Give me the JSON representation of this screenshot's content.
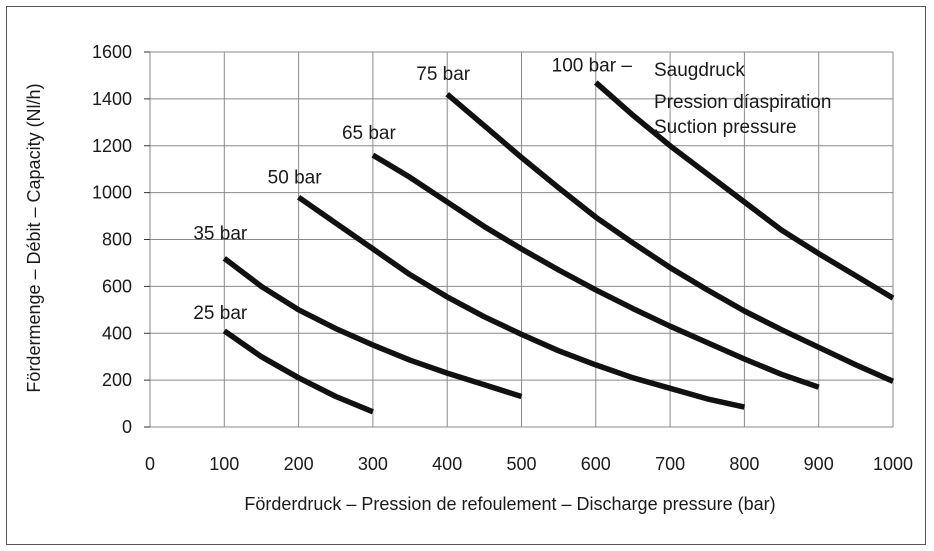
{
  "chart_data": {
    "type": "line",
    "title": "",
    "xlabel": "Förderdruck – Pression de refoulement – Discharge pressure  (bar)",
    "ylabel": "Fördermenge – Débit – Capacity  (Nl/h)",
    "xlim": [
      0,
      1000
    ],
    "ylim": [
      0,
      1600
    ],
    "xticks": [
      "0",
      "100",
      "200",
      "300",
      "400",
      "500",
      "600",
      "700",
      "800",
      "900",
      "1000"
    ],
    "yticks": [
      "0",
      "200",
      "400",
      "600",
      "800",
      "1000",
      "1200",
      "1400",
      "1600"
    ],
    "grid": true,
    "legend_text": [
      "Saugdruck",
      "Pression díaspiration",
      "Suction pressure"
    ],
    "series": [
      {
        "name": "25 bar",
        "x": [
          100,
          150,
          200,
          250,
          300
        ],
        "y": [
          410,
          300,
          210,
          130,
          65
        ]
      },
      {
        "name": "35 bar",
        "x": [
          100,
          150,
          200,
          250,
          300,
          350,
          400,
          450,
          500
        ],
        "y": [
          720,
          600,
          500,
          420,
          350,
          285,
          230,
          180,
          130
        ]
      },
      {
        "name": "50 bar",
        "x": [
          200,
          250,
          300,
          350,
          400,
          450,
          500,
          550,
          600,
          650,
          700,
          750,
          800
        ],
        "y": [
          980,
          870,
          760,
          650,
          555,
          470,
          395,
          325,
          265,
          210,
          165,
          120,
          85
        ]
      },
      {
        "name": "65 bar",
        "x": [
          300,
          350,
          400,
          450,
          500,
          550,
          600,
          650,
          700,
          750,
          800,
          850,
          900
        ],
        "y": [
          1160,
          1065,
          960,
          855,
          760,
          670,
          585,
          505,
          430,
          360,
          290,
          225,
          170
        ]
      },
      {
        "name": "75 bar",
        "x": [
          400,
          450,
          500,
          550,
          600,
          650,
          700,
          750,
          800,
          850,
          900,
          950,
          1000
        ],
        "y": [
          1420,
          1285,
          1150,
          1020,
          895,
          785,
          680,
          585,
          495,
          415,
          340,
          265,
          195
        ]
      },
      {
        "name": "100 bar – ",
        "x": [
          600,
          650,
          700,
          750,
          800,
          850,
          900,
          950,
          1000
        ],
        "y": [
          1470,
          1330,
          1200,
          1080,
          960,
          840,
          740,
          645,
          550
        ]
      }
    ]
  }
}
